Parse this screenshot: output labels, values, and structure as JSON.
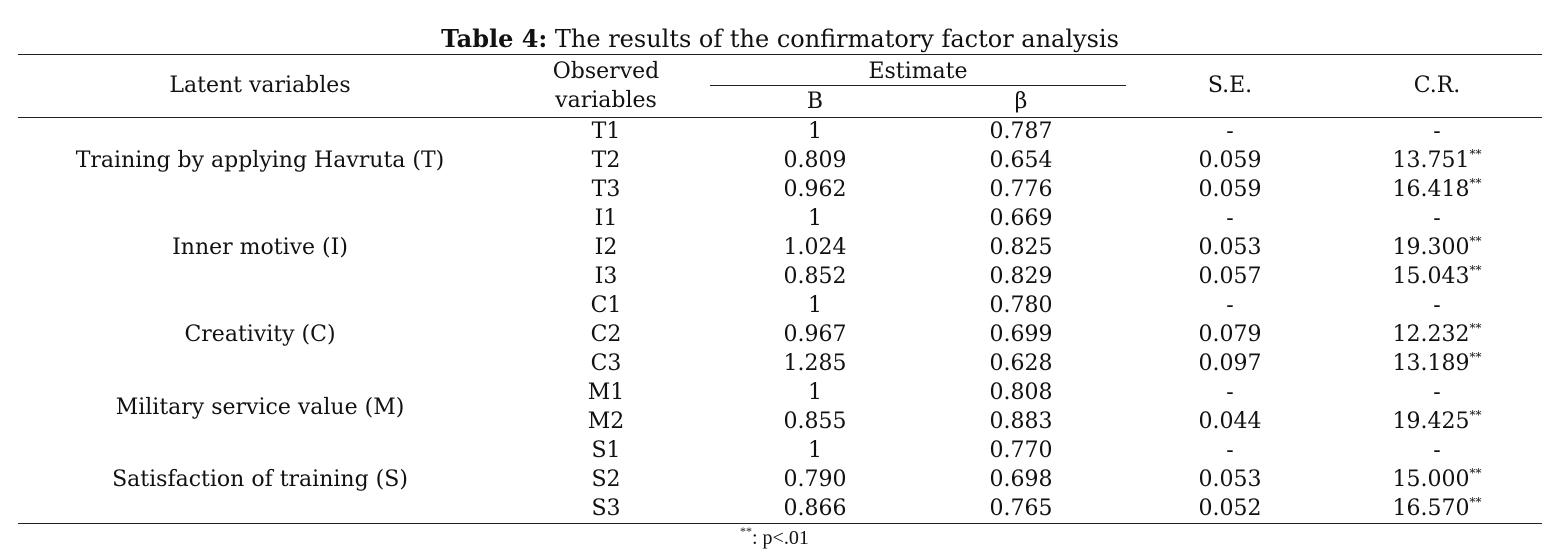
{
  "caption": {
    "label": "Table 4:",
    "text": " The results of the confirmatory factor analysis"
  },
  "headers": {
    "latent": "Latent variables",
    "observed_line1": "Observed",
    "observed_line2": "variables",
    "estimate": "Estimate",
    "b": "B",
    "beta": "β",
    "se": "S.E.",
    "cr": "C.R."
  },
  "latent_groups": [
    "Training by applying Havruta (T)",
    "Inner motive (I)",
    "Creativity (C)",
    "Military service value (M)",
    "Satisfaction of training (S)"
  ],
  "rows": [
    {
      "obs": "T1",
      "b": "1",
      "beta": "0.787",
      "se": "-",
      "cr": "-",
      "sig": ""
    },
    {
      "obs": "T2",
      "b": "0.809",
      "beta": "0.654",
      "se": "0.059",
      "cr": "13.751",
      "sig": "**"
    },
    {
      "obs": "T3",
      "b": "0.962",
      "beta": "0.776",
      "se": "0.059",
      "cr": "16.418",
      "sig": "**"
    },
    {
      "obs": "I1",
      "b": "1",
      "beta": "0.669",
      "se": "-",
      "cr": "-",
      "sig": ""
    },
    {
      "obs": "I2",
      "b": "1.024",
      "beta": "0.825",
      "se": "0.053",
      "cr": "19.300",
      "sig": "**"
    },
    {
      "obs": "I3",
      "b": "0.852",
      "beta": "0.829",
      "se": "0.057",
      "cr": "15.043",
      "sig": "**"
    },
    {
      "obs": "C1",
      "b": "1",
      "beta": "0.780",
      "se": "-",
      "cr": "-",
      "sig": ""
    },
    {
      "obs": "C2",
      "b": "0.967",
      "beta": "0.699",
      "se": "0.079",
      "cr": "12.232",
      "sig": "**"
    },
    {
      "obs": "C3",
      "b": "1.285",
      "beta": "0.628",
      "se": "0.097",
      "cr": "13.189",
      "sig": "**"
    },
    {
      "obs": "M1",
      "b": "1",
      "beta": "0.808",
      "se": "-",
      "cr": "-",
      "sig": ""
    },
    {
      "obs": "M2",
      "b": "0.855",
      "beta": "0.883",
      "se": "0.044",
      "cr": "19.425",
      "sig": "**"
    },
    {
      "obs": "S1",
      "b": "1",
      "beta": "0.770",
      "se": "-",
      "cr": "-",
      "sig": ""
    },
    {
      "obs": "S2",
      "b": "0.790",
      "beta": "0.698",
      "se": "0.053",
      "cr": "15.000",
      "sig": "**"
    },
    {
      "obs": "S3",
      "b": "0.866",
      "beta": "0.765",
      "se": "0.052",
      "cr": "16.570",
      "sig": "**"
    }
  ],
  "note": {
    "mark": "**",
    "text": ": p<.01"
  }
}
